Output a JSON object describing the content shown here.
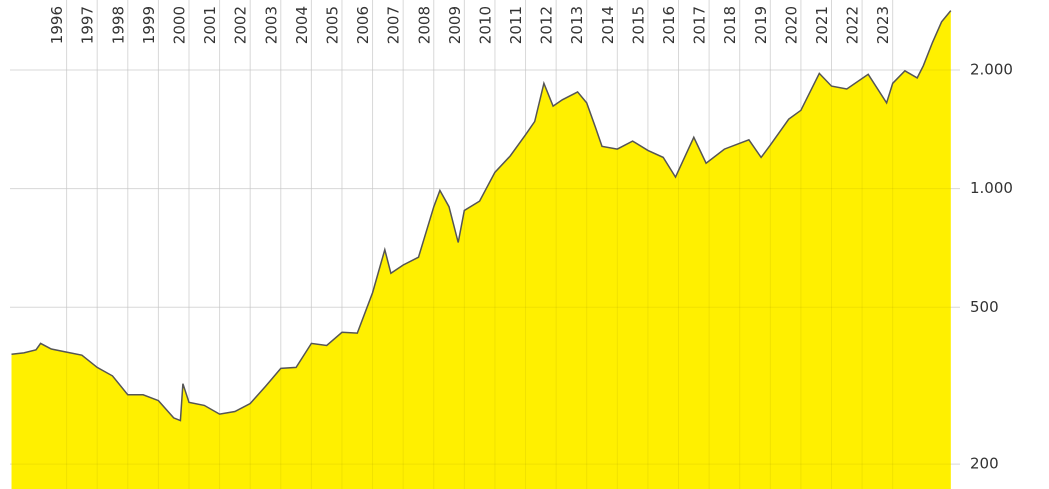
{
  "chart_data": {
    "type": "area",
    "log_scale": true,
    "grid": true,
    "color": "#fff000",
    "line_color": "#555555",
    "x": [
      1994.2,
      1994.6,
      1995.0,
      1995.15,
      1995.5,
      1996.0,
      1996.5,
      1997.0,
      1997.5,
      1998.0,
      1998.5,
      1999.0,
      1999.5,
      1999.72,
      1999.8,
      2000.0,
      2000.5,
      2001.0,
      2001.5,
      2002.0,
      2002.5,
      2003.0,
      2003.5,
      2004.0,
      2004.5,
      2005.0,
      2005.5,
      2006.0,
      2006.4,
      2006.6,
      2007.0,
      2007.5,
      2008.0,
      2008.2,
      2008.5,
      2008.8,
      2009.0,
      2009.5,
      2010.0,
      2010.5,
      2011.0,
      2011.3,
      2011.6,
      2011.9,
      2012.2,
      2012.7,
      2013.0,
      2013.3,
      2013.5,
      2014.0,
      2014.5,
      2015.0,
      2015.5,
      2015.9,
      2016.5,
      2016.9,
      2017.5,
      2018.3,
      2018.7,
      2019.0,
      2019.6,
      2020.0,
      2020.6,
      2021.0,
      2021.5,
      2022.2,
      2022.8,
      2023.0,
      2023.4,
      2023.8,
      2024.0,
      2024.3,
      2024.6,
      2024.9
    ],
    "values": [
      380,
      383,
      390,
      405,
      392,
      385,
      378,
      352,
      335,
      300,
      300,
      290,
      262,
      258,
      320,
      287,
      282,
      268,
      272,
      285,
      315,
      350,
      352,
      405,
      400,
      432,
      430,
      545,
      700,
      610,
      640,
      670,
      900,
      990,
      900,
      730,
      880,
      930,
      1100,
      1210,
      1370,
      1480,
      1850,
      1620,
      1680,
      1760,
      1650,
      1420,
      1280,
      1260,
      1320,
      1250,
      1200,
      1070,
      1350,
      1160,
      1260,
      1330,
      1200,
      1290,
      1500,
      1580,
      1960,
      1820,
      1790,
      1950,
      1650,
      1850,
      1990,
      1910,
      2050,
      2350,
      2650,
      2830
    ],
    "xlim": [
      1994.15,
      2025.2
    ],
    "xticks": [
      1996,
      1997,
      1998,
      1999,
      2000,
      2001,
      2002,
      2003,
      2004,
      2005,
      2006,
      2007,
      2008,
      2009,
      2010,
      2011,
      2012,
      2013,
      2014,
      2015,
      2016,
      2017,
      2018,
      2019,
      2020,
      2021,
      2022,
      2023
    ],
    "ylim": [
      173,
      3010
    ],
    "yticks": [
      {
        "value": 200,
        "label": "200"
      },
      {
        "value": 500,
        "label": "500"
      },
      {
        "value": 1000,
        "label": "1.000"
      },
      {
        "value": 2000,
        "label": "2.000"
      }
    ]
  }
}
